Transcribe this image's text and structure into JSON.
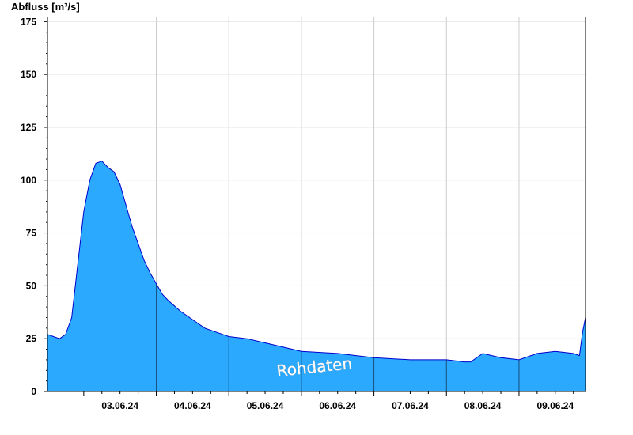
{
  "chart_data": {
    "type": "area",
    "ylabel": "Abfluss [m³/s]",
    "watermark": "Rohdaten",
    "ylim": [
      0,
      177
    ],
    "xlim": [
      "2024-06-02T12:00",
      "2024-06-09T22:00"
    ],
    "yticks": [
      0,
      25,
      50,
      75,
      100,
      125,
      150,
      175
    ],
    "xticks": [
      {
        "label": "03.06.24",
        "at": "2024-06-03T12:00"
      },
      {
        "label": "04.06.24",
        "at": "2024-06-04T12:00"
      },
      {
        "label": "05.06.24",
        "at": "2024-06-05T12:00"
      },
      {
        "label": "06.06.24",
        "at": "2024-06-06T12:00"
      },
      {
        "label": "07.06.24",
        "at": "2024-06-07T12:00"
      },
      {
        "label": "08.06.24",
        "at": "2024-06-08T12:00"
      },
      {
        "label": "09.06.24",
        "at": "2024-06-09T12:00"
      }
    ],
    "day_separators": [
      "2024-06-04T00:00",
      "2024-06-05T00:00",
      "2024-06-06T00:00",
      "2024-06-07T00:00",
      "2024-06-08T00:00",
      "2024-06-09T00:00"
    ],
    "grid": true,
    "fill_color": "#2aa9ff",
    "line_color": "#0000cc",
    "series": [
      {
        "x": [
          "2024-06-02T12:00",
          "2024-06-02T14:00",
          "2024-06-02T16:00",
          "2024-06-02T18:00",
          "2024-06-02T20:00",
          "2024-06-02T22:00",
          "2024-06-03T00:00",
          "2024-06-03T02:00",
          "2024-06-03T04:00",
          "2024-06-03T06:00",
          "2024-06-03T08:00",
          "2024-06-03T10:00",
          "2024-06-03T12:00",
          "2024-06-03T14:00",
          "2024-06-03T16:00",
          "2024-06-03T18:00",
          "2024-06-03T20:00",
          "2024-06-03T22:00",
          "2024-06-04T00:00",
          "2024-06-04T02:00",
          "2024-06-04T04:00",
          "2024-06-04T08:00",
          "2024-06-04T12:00",
          "2024-06-04T16:00",
          "2024-06-04T20:00",
          "2024-06-05T00:00",
          "2024-06-05T06:00",
          "2024-06-05T12:00",
          "2024-06-05T18:00",
          "2024-06-06T00:00",
          "2024-06-06T12:00",
          "2024-06-07T00:00",
          "2024-06-07T12:00",
          "2024-06-08T00:00",
          "2024-06-08T06:00",
          "2024-06-08T08:00",
          "2024-06-08T12:00",
          "2024-06-08T18:00",
          "2024-06-09T00:00",
          "2024-06-09T06:00",
          "2024-06-09T12:00",
          "2024-06-09T18:00",
          "2024-06-09T20:00",
          "2024-06-09T21:00",
          "2024-06-09T22:00"
        ],
        "y": [
          27,
          26,
          25,
          27,
          35,
          60,
          85,
          100,
          108,
          109,
          106,
          104,
          98,
          88,
          78,
          70,
          62,
          56,
          51,
          46,
          43,
          38,
          34,
          30,
          28,
          26,
          25,
          23,
          21,
          19,
          18,
          16,
          15,
          15,
          14,
          14,
          18,
          16,
          15,
          18,
          19,
          18,
          17,
          28,
          35
        ]
      }
    ]
  }
}
